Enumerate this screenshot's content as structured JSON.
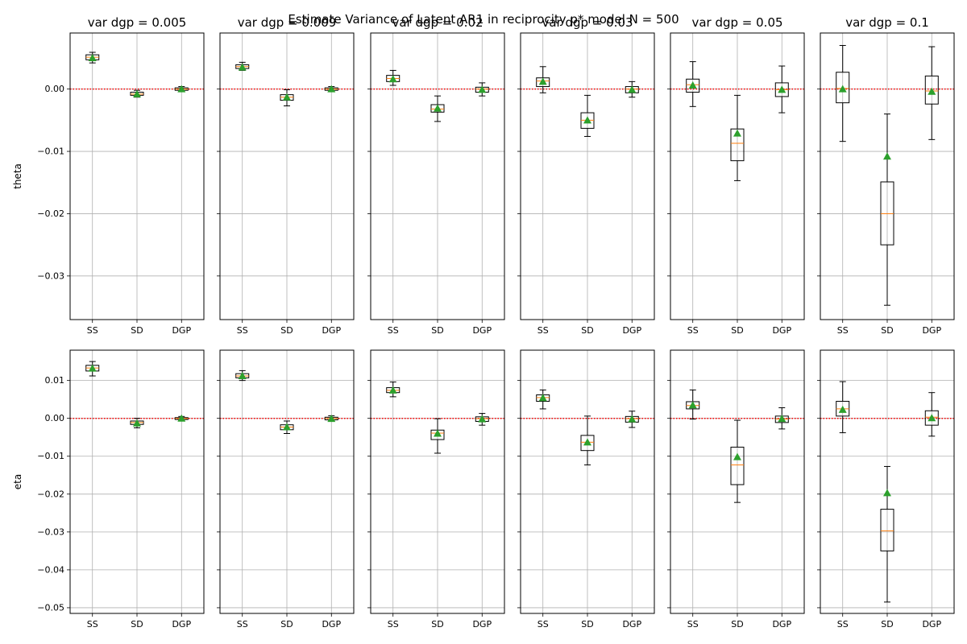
{
  "colors": {
    "box": "#000000",
    "median": "#ff7f0e",
    "mean_marker": "#2ca02c",
    "reference_line": "#ff0000",
    "grid": "#b0b0b0"
  },
  "chart_data": {
    "type": "box",
    "title": "Estimate Variance of Latent AR1 in reciprocity p* model N = 500",
    "grid": true,
    "shared_y_per_row": true,
    "reference_line_y": 0,
    "categories": [
      "SS",
      "SD",
      "DGP"
    ],
    "column_titles": [
      "var dgp = 0.005",
      "var dgp = 0.009",
      "var dgp = 0.02",
      "var dgp = 0.03",
      "var dgp = 0.05",
      "var dgp = 0.1"
    ],
    "rows": [
      {
        "ylabel": "theta",
        "ylim": [
          -0.037,
          0.009
        ],
        "yticks": [
          0.0,
          -0.01,
          -0.02,
          -0.03
        ],
        "ytick_labels": [
          "0.00",
          "−0.01",
          "−0.02",
          "−0.03"
        ],
        "panels": [
          [
            {
              "whislo": 0.0042,
              "q1": 0.0047,
              "med": 0.0051,
              "q3": 0.0055,
              "whishi": 0.0059,
              "mean": 0.005
            },
            {
              "whislo": -0.0013,
              "q1": -0.001,
              "med": -0.0008,
              "q3": -0.0005,
              "whishi": -0.0002,
              "mean": -0.0008
            },
            {
              "whislo": -0.0004,
              "q1": -0.0002,
              "med": 0.0,
              "q3": 0.0002,
              "whishi": 0.0004,
              "mean": 0.0
            }
          ],
          [
            {
              "whislo": 0.003,
              "q1": 0.0033,
              "med": 0.0036,
              "q3": 0.0039,
              "whishi": 0.0043,
              "mean": 0.0035
            },
            {
              "whislo": -0.0027,
              "q1": -0.0018,
              "med": -0.0013,
              "q3": -0.0009,
              "whishi": -0.0001,
              "mean": -0.0013
            },
            {
              "whislo": -0.0004,
              "q1": -0.0002,
              "med": 0.0,
              "q3": 0.0002,
              "whishi": 0.0004,
              "mean": 0.0
            }
          ],
          [
            {
              "whislo": 0.0006,
              "q1": 0.0012,
              "med": 0.0017,
              "q3": 0.0022,
              "whishi": 0.003,
              "mean": 0.0016
            },
            {
              "whislo": -0.0052,
              "q1": -0.0037,
              "med": -0.0032,
              "q3": -0.0025,
              "whishi": -0.0011,
              "mean": -0.0031
            },
            {
              "whislo": -0.0011,
              "q1": -0.0005,
              "med": 0.0,
              "q3": 0.0003,
              "whishi": 0.001,
              "mean": -0.0001
            }
          ],
          [
            {
              "whislo": -0.0006,
              "q1": 0.0004,
              "med": 0.0013,
              "q3": 0.0018,
              "whishi": 0.0036,
              "mean": 0.0012
            },
            {
              "whislo": -0.0076,
              "q1": -0.0063,
              "med": -0.005,
              "q3": -0.0038,
              "whishi": -0.001,
              "mean": -0.005
            },
            {
              "whislo": -0.0013,
              "q1": -0.0006,
              "med": 0.0,
              "q3": 0.0004,
              "whishi": 0.0012,
              "mean": -0.0001
            }
          ],
          [
            {
              "whislo": -0.0028,
              "q1": -0.0005,
              "med": 0.0007,
              "q3": 0.0016,
              "whishi": 0.0044,
              "mean": 0.0006
            },
            {
              "whislo": -0.0147,
              "q1": -0.0115,
              "med": -0.0087,
              "q3": -0.0064,
              "whishi": -0.001,
              "mean": -0.0071
            },
            {
              "whislo": -0.0038,
              "q1": -0.0012,
              "med": -0.0001,
              "q3": 0.001,
              "whishi": 0.0037,
              "mean": -0.0001
            }
          ],
          [
            {
              "whislo": -0.0084,
              "q1": -0.0022,
              "med": 0.0001,
              "q3": 0.0027,
              "whishi": 0.007,
              "mean": 0.0
            },
            {
              "whislo": -0.0347,
              "q1": -0.025,
              "med": -0.02,
              "q3": -0.0149,
              "whishi": -0.004,
              "mean": -0.0108
            },
            {
              "whislo": -0.0081,
              "q1": -0.0024,
              "med": -0.0003,
              "q3": 0.0021,
              "whishi": 0.0068,
              "mean": -0.0004
            }
          ]
        ]
      },
      {
        "ylabel": "eta",
        "ylim": [
          -0.0515,
          0.018
        ],
        "yticks": [
          0.01,
          0.0,
          -0.01,
          -0.02,
          -0.03,
          -0.04,
          -0.05
        ],
        "ytick_labels": [
          "0.01",
          "0.00",
          "−0.01",
          "−0.02",
          "−0.03",
          "−0.04",
          "−0.05"
        ],
        "panels": [
          [
            {
              "whislo": 0.0112,
              "q1": 0.0125,
              "med": 0.0133,
              "q3": 0.014,
              "whishi": 0.015,
              "mean": 0.0132
            },
            {
              "whislo": -0.0025,
              "q1": -0.0016,
              "med": -0.0011,
              "q3": -0.0007,
              "whishi": 0.0,
              "mean": -0.0013
            },
            {
              "whislo": -0.0006,
              "q1": -0.0003,
              "med": 0.0,
              "q3": 0.0002,
              "whishi": 0.0005,
              "mean": 0.0
            }
          ],
          [
            {
              "whislo": 0.01,
              "q1": 0.0107,
              "med": 0.0112,
              "q3": 0.0118,
              "whishi": 0.0126,
              "mean": 0.0112
            },
            {
              "whislo": -0.004,
              "q1": -0.003,
              "med": -0.0023,
              "q3": -0.0017,
              "whishi": -0.0007,
              "mean": -0.0023
            },
            {
              "whislo": -0.0008,
              "q1": -0.0004,
              "med": 0.0,
              "q3": 0.0003,
              "whishi": 0.0007,
              "mean": -0.0001
            }
          ],
          [
            {
              "whislo": 0.0057,
              "q1": 0.0068,
              "med": 0.0074,
              "q3": 0.0081,
              "whishi": 0.0096,
              "mean": 0.0074
            },
            {
              "whislo": -0.0092,
              "q1": -0.0056,
              "med": -0.0039,
              "q3": -0.0031,
              "whishi": -0.0001,
              "mean": -0.004
            },
            {
              "whislo": -0.0018,
              "q1": -0.0008,
              "med": -0.0001,
              "q3": 0.0004,
              "whishi": 0.0013,
              "mean": -0.0002
            }
          ],
          [
            {
              "whislo": 0.0025,
              "q1": 0.0045,
              "med": 0.0055,
              "q3": 0.0062,
              "whishi": 0.0075,
              "mean": 0.0054
            },
            {
              "whislo": -0.0123,
              "q1": -0.0085,
              "med": -0.0063,
              "q3": -0.0045,
              "whishi": 0.0006,
              "mean": -0.0063
            },
            {
              "whislo": -0.0024,
              "q1": -0.001,
              "med": -0.0001,
              "q3": 0.0005,
              "whishi": 0.0019,
              "mean": -0.0002
            }
          ],
          [
            {
              "whislo": -0.0002,
              "q1": 0.0025,
              "med": 0.0034,
              "q3": 0.0044,
              "whishi": 0.0075,
              "mean": 0.0035
            },
            {
              "whislo": -0.0222,
              "q1": -0.0175,
              "med": -0.0123,
              "q3": -0.0076,
              "whishi": -0.0005,
              "mean": -0.0102
            },
            {
              "whislo": -0.0028,
              "q1": -0.0011,
              "med": -0.0002,
              "q3": 0.0006,
              "whishi": 0.0028,
              "mean": -0.0001
            }
          ],
          [
            {
              "whislo": -0.0038,
              "q1": 0.0006,
              "med": 0.0025,
              "q3": 0.0045,
              "whishi": 0.0097,
              "mean": 0.0023
            },
            {
              "whislo": -0.0485,
              "q1": -0.035,
              "med": -0.0297,
              "q3": -0.024,
              "whishi": -0.0127,
              "mean": -0.0197
            },
            {
              "whislo": -0.0047,
              "q1": -0.0018,
              "med": 0.0003,
              "q3": 0.002,
              "whishi": 0.0068,
              "mean": 0.0001
            }
          ]
        ]
      }
    ]
  }
}
